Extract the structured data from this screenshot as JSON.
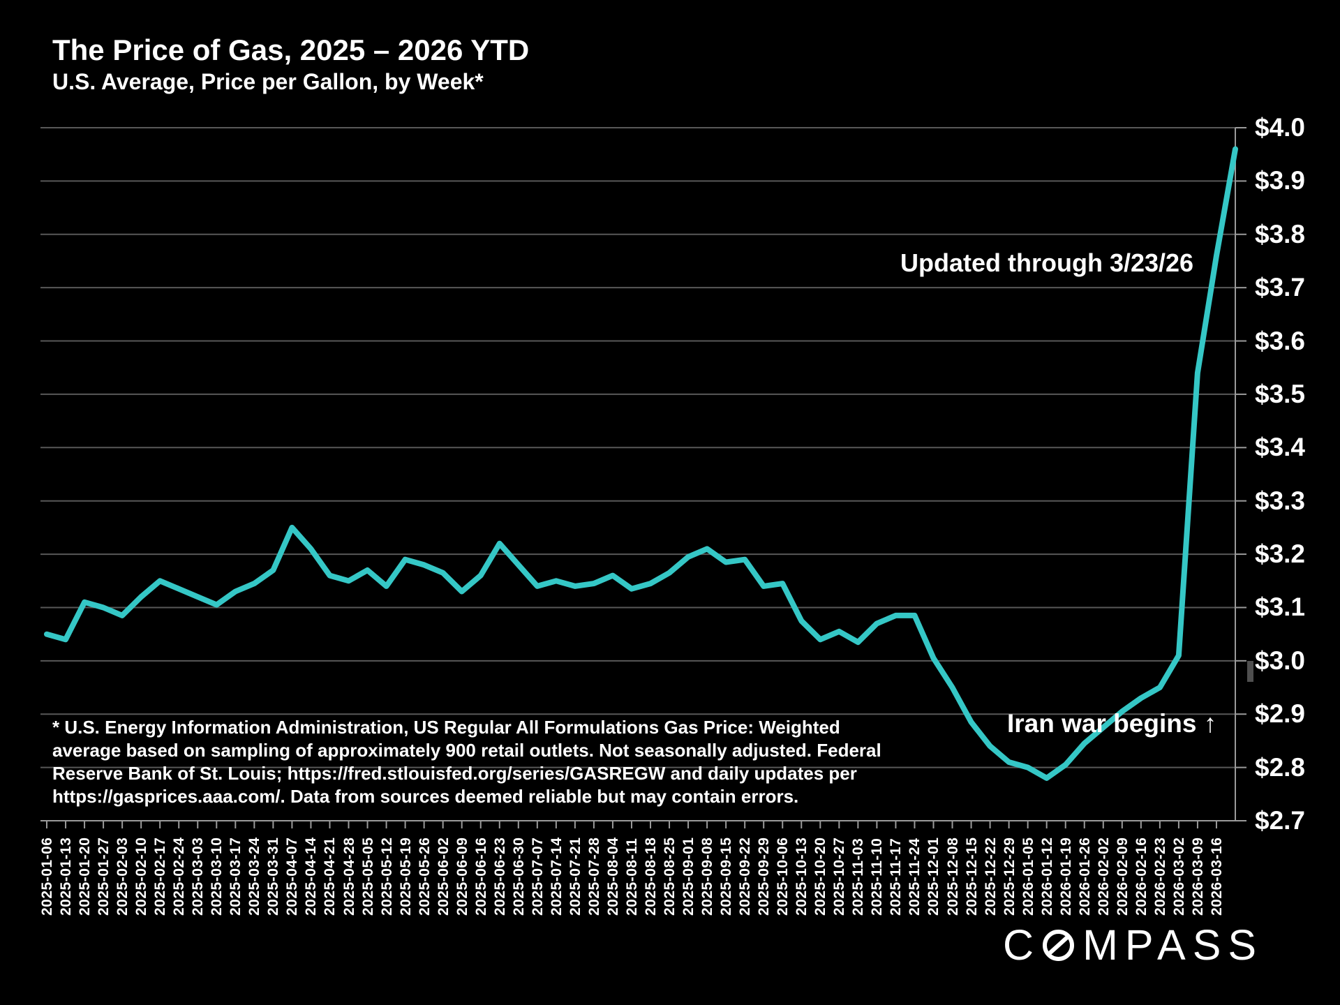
{
  "page": {
    "background": "#000000"
  },
  "header": {
    "title": "The Price of Gas, 2025 – 2026 YTD",
    "subtitle": "U.S. Average, Price per Gallon, by Week*"
  },
  "annotations": {
    "updated": "Updated through 3/23/26",
    "event": "Iran war begins ↑"
  },
  "footnote_lines": [
    "* U.S. Energy Information Administration, US Regular All Formulations Gas Price: Weighted",
    "average based on sampling of approximately 900 retail outlets. Not seasonally adjusted. Federal",
    "Reserve Bank of St. Louis; https://fred.stlouisfed.org/series/GASREGW and daily updates per",
    "https://gasprices.aaa.com/. Data from sources deemed reliable but may contain errors."
  ],
  "logo": {
    "prefix": "C",
    "suffix": "MPASS",
    "full_name": "COMPASS"
  },
  "chart_data": {
    "type": "line",
    "title": "The Price of Gas, 2025 – 2026 YTD",
    "subtitle": "U.S. Average, Price per Gallon, by Week*",
    "series_name": "U.S. average regular gas price, $/gallon",
    "series_color": "#35c7c6",
    "grid": "horizontal",
    "legend": "none",
    "axis_side": "right",
    "ylim": [
      2.7,
      4.0
    ],
    "y_tick_step": 0.1,
    "y_tick_labels": [
      "$4.0",
      "$3.9",
      "$3.8",
      "$3.7",
      "$3.6",
      "$3.5",
      "$3.4",
      "$3.3",
      "$3.2",
      "$3.1",
      "$3.0",
      "$2.9",
      "$2.8",
      "$2.7"
    ],
    "x_tick_labels": [
      "2025-01-06",
      "2025-01-13",
      "2025-01-20",
      "2025-01-27",
      "2025-02-03",
      "2025-02-10",
      "2025-02-17",
      "2025-02-24",
      "2025-03-03",
      "2025-03-10",
      "2025-03-17",
      "2025-03-24",
      "2025-03-31",
      "2025-04-07",
      "2025-04-14",
      "2025-04-21",
      "2025-04-28",
      "2025-05-05",
      "2025-05-12",
      "2025-05-19",
      "2025-05-26",
      "2025-06-02",
      "2025-06-09",
      "2025-06-16",
      "2025-06-23",
      "2025-06-30",
      "2025-07-07",
      "2025-07-14",
      "2025-07-21",
      "2025-07-28",
      "2025-08-04",
      "2025-08-11",
      "2025-08-18",
      "2025-08-25",
      "2025-09-01",
      "2025-09-08",
      "2025-09-15",
      "2025-09-22",
      "2025-09-29",
      "2025-10-06",
      "2025-10-13",
      "2025-10-20",
      "2025-10-27",
      "2025-11-03",
      "2025-11-10",
      "2025-11-17",
      "2025-11-24",
      "2025-12-01",
      "2025-12-08",
      "2025-12-15",
      "2025-12-22",
      "2025-12-29",
      "2026-01-05",
      "2026-01-12",
      "2026-01-19",
      "2026-01-26",
      "2026-02-02",
      "2026-02-09",
      "2026-02-16",
      "2026-02-23",
      "2026-03-02",
      "2026-03-09",
      "2026-03-16"
    ],
    "x_note": "weekly points; line extends one interval past the last axis label (through 3/23/26 per annotation)",
    "values": [
      3.05,
      3.04,
      3.11,
      3.1,
      3.085,
      3.12,
      3.15,
      3.135,
      3.12,
      3.105,
      3.13,
      3.145,
      3.17,
      3.25,
      3.21,
      3.16,
      3.15,
      3.17,
      3.14,
      3.19,
      3.18,
      3.165,
      3.13,
      3.16,
      3.22,
      3.18,
      3.14,
      3.15,
      3.14,
      3.145,
      3.16,
      3.135,
      3.145,
      3.165,
      3.195,
      3.21,
      3.185,
      3.19,
      3.14,
      3.145,
      3.075,
      3.04,
      3.055,
      3.035,
      3.07,
      3.085,
      3.085,
      3.005,
      2.95,
      2.885,
      2.84,
      2.81,
      2.8,
      2.78,
      2.805,
      2.845,
      2.875,
      2.905,
      2.93,
      2.95,
      3.01,
      3.54,
      3.76,
      3.96
    ]
  }
}
